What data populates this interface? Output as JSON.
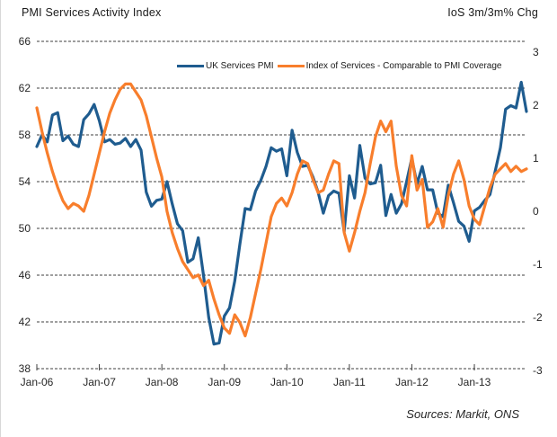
{
  "header": {
    "left_title": "PMI Services Activity Index",
    "right_title": "IoS 3m/3m% Chg"
  },
  "legend": [
    {
      "label": "UK Services PMI",
      "color": "#1F5C8F"
    },
    {
      "label": "Index of Services - Comparable to PMI Coverage",
      "color": "#F87E2C"
    }
  ],
  "footer": {
    "source": "Sources: Markit, ONS"
  },
  "chart_data": {
    "type": "line",
    "title_left": "PMI Services Activity Index",
    "title_right": "IoS 3m/3m% Chg",
    "x_tick_labels": [
      "Jan-06",
      "Jan-07",
      "Jan-08",
      "Jan-09",
      "Jan-10",
      "Jan-11",
      "Jan-12",
      "Jan-13"
    ],
    "x_start": "Jan-06",
    "x_end": "Nov-13",
    "points_per_series": 95,
    "months_per_tick": 12,
    "grid": "horizontal-dashed",
    "legend_position": "top-center",
    "left_axis": {
      "label": "PMI Services Activity Index",
      "ticks": [
        66,
        62,
        58,
        54,
        50,
        46,
        42,
        38
      ],
      "min": 38,
      "max": 66
    },
    "right_axis": {
      "label": "IoS 3m/3m% Chg",
      "ticks": [
        3,
        2,
        1,
        0,
        -1,
        -2,
        -3
      ],
      "min": -3,
      "max": 3
    },
    "series": [
      {
        "name": "UK Services PMI",
        "axis": "left",
        "color": "#1F5C8F",
        "values": [
          57.0,
          58.0,
          57.4,
          59.7,
          59.9,
          57.5,
          57.9,
          57.2,
          57.0,
          59.3,
          59.8,
          60.6,
          59.2,
          57.4,
          57.6,
          57.2,
          57.3,
          57.7,
          57.0,
          57.6,
          56.7,
          53.1,
          51.9,
          52.4,
          52.5,
          54.0,
          52.1,
          50.4,
          49.8,
          47.1,
          47.4,
          49.2,
          46.0,
          42.4,
          40.1,
          40.2,
          42.5,
          43.2,
          45.5,
          48.7,
          51.7,
          51.6,
          53.2,
          54.1,
          55.3,
          56.9,
          56.6,
          56.8,
          54.5,
          58.4,
          56.5,
          55.3,
          55.4,
          54.4,
          53.1,
          51.3,
          52.8,
          53.2,
          53.0,
          49.7,
          54.5,
          52.6,
          57.1,
          54.3,
          53.8,
          53.9,
          55.4,
          51.1,
          52.9,
          51.3,
          52.1,
          54.0,
          56.0,
          53.8,
          55.3,
          53.3,
          53.3,
          51.3,
          51.0,
          53.7,
          52.2,
          50.6,
          50.2,
          48.9,
          51.5,
          51.8,
          52.4,
          52.9,
          54.9,
          56.9,
          60.2,
          60.5,
          60.3,
          62.5,
          60.0
        ]
      },
      {
        "name": "Index of Services - Comparable to PMI Coverage",
        "axis": "right",
        "color": "#F87E2C",
        "values": [
          1.95,
          1.5,
          1.1,
          0.75,
          0.45,
          0.2,
          0.05,
          0.15,
          0.1,
          0.0,
          0.3,
          0.7,
          1.1,
          1.5,
          1.85,
          2.1,
          2.3,
          2.4,
          2.4,
          2.25,
          2.1,
          1.8,
          1.4,
          1.0,
          0.65,
          0.0,
          -0.4,
          -0.7,
          -0.95,
          -1.1,
          -1.25,
          -1.2,
          -1.4,
          -1.3,
          -1.65,
          -1.95,
          -2.2,
          -2.3,
          -1.95,
          -2.1,
          -2.35,
          -2.0,
          -1.55,
          -1.1,
          -0.6,
          -0.1,
          0.15,
          0.25,
          0.1,
          0.35,
          0.7,
          0.95,
          0.9,
          0.6,
          0.35,
          0.4,
          0.7,
          0.95,
          0.9,
          -0.4,
          -0.75,
          -0.4,
          0.0,
          0.35,
          0.9,
          1.4,
          1.7,
          1.5,
          1.7,
          0.85,
          0.3,
          0.1,
          1.05,
          0.4,
          0.6,
          -0.3,
          -0.2,
          0.05,
          -0.3,
          0.3,
          0.7,
          0.95,
          0.6,
          0.1,
          -0.15,
          -0.25,
          0.1,
          0.45,
          0.7,
          0.8,
          0.9,
          0.75,
          0.85,
          0.75,
          0.8
        ]
      }
    ]
  }
}
